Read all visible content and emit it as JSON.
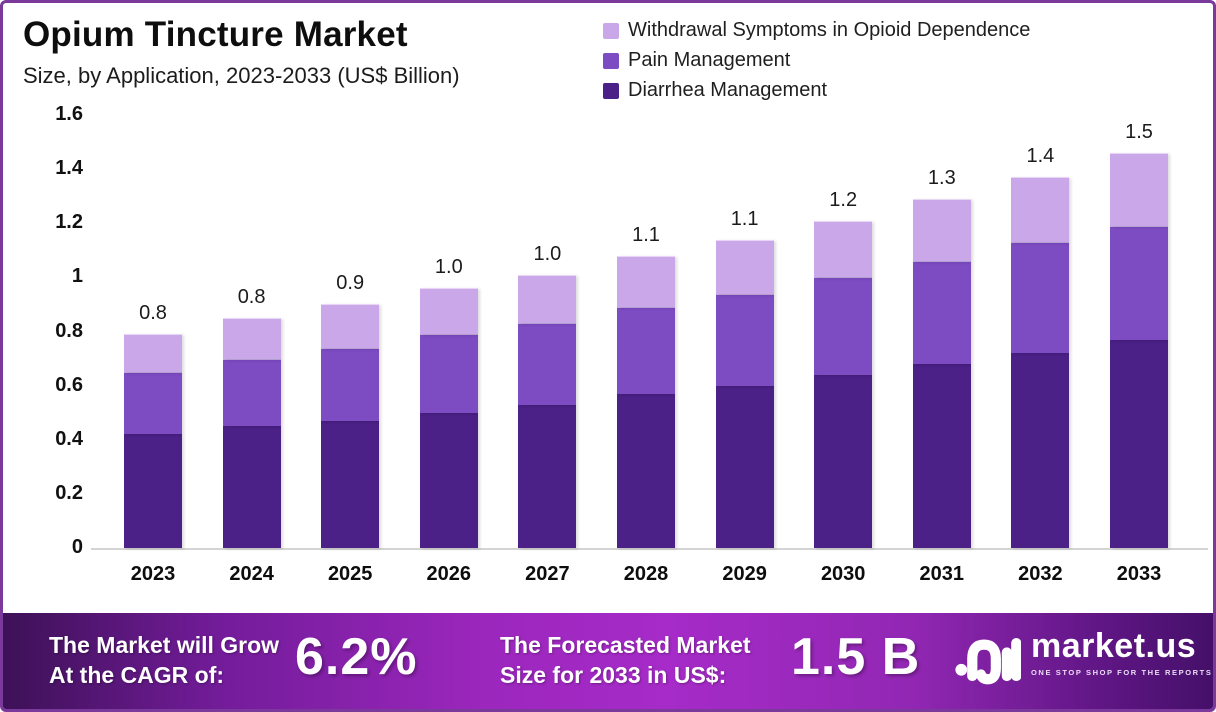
{
  "header": {
    "title": "Opium Tincture Market",
    "subtitle": "Size, by Application, 2023-2033 (US$ Billion)"
  },
  "legend": [
    {
      "label": "Withdrawal Symptoms in Opioid Dependence",
      "color": "#c9a7e8"
    },
    {
      "label": "Pain Management",
      "color": "#7d4bc2"
    },
    {
      "label": "Diarrhea Management",
      "color": "#4b2087"
    }
  ],
  "chart_data": {
    "type": "bar",
    "stacked": true,
    "title": "Opium Tincture Market Size, by Application, 2023-2033 (US$ Billion)",
    "categories": [
      "2023",
      "2024",
      "2025",
      "2026",
      "2027",
      "2028",
      "2029",
      "2030",
      "2031",
      "2032",
      "2033"
    ],
    "series": [
      {
        "name": "Diarrhea Management",
        "color": "#4b2087",
        "values": [
          0.42,
          0.45,
          0.47,
          0.5,
          0.53,
          0.57,
          0.6,
          0.64,
          0.68,
          0.72,
          0.77
        ]
      },
      {
        "name": "Pain Management",
        "color": "#7d4bc2",
        "values": [
          0.23,
          0.25,
          0.27,
          0.29,
          0.3,
          0.32,
          0.34,
          0.36,
          0.38,
          0.41,
          0.42
        ]
      },
      {
        "name": "Withdrawal Symptoms in Opioid Dependence",
        "color": "#c9a7e8",
        "values": [
          0.14,
          0.15,
          0.16,
          0.17,
          0.18,
          0.19,
          0.2,
          0.21,
          0.23,
          0.24,
          0.27
        ]
      }
    ],
    "total_labels": [
      "0.8",
      "0.8",
      "0.9",
      "1.0",
      "1.0",
      "1.1",
      "1.1",
      "1.2",
      "1.3",
      "1.4",
      "1.5"
    ],
    "ylabel": "",
    "xlabel": "",
    "ylim": [
      0,
      1.6
    ],
    "yticks": [
      {
        "value": 0,
        "label": "0"
      },
      {
        "value": 0.2,
        "label": "0.2"
      },
      {
        "value": 0.4,
        "label": "0.4"
      },
      {
        "value": 0.6,
        "label": "0.6"
      },
      {
        "value": 0.8,
        "label": "0.8"
      },
      {
        "value": 1,
        "label": "1"
      },
      {
        "value": 1.2,
        "label": "1.2"
      },
      {
        "value": 1.4,
        "label": "1.4"
      },
      {
        "value": 1.6,
        "label": "1.6"
      }
    ],
    "grid": false,
    "legend_position": "top-right"
  },
  "footer": {
    "cagr": {
      "line1": "The Market will Grow",
      "line2": "At the CAGR of:",
      "value": "6.2%"
    },
    "forecast": {
      "line1": "The Forecasted Market",
      "line2": "Size for 2033 in US$:",
      "value": "1.5 B"
    },
    "brand": {
      "name": "market.us",
      "tagline": "ONE STOP SHOP FOR THE REPORTS"
    }
  }
}
